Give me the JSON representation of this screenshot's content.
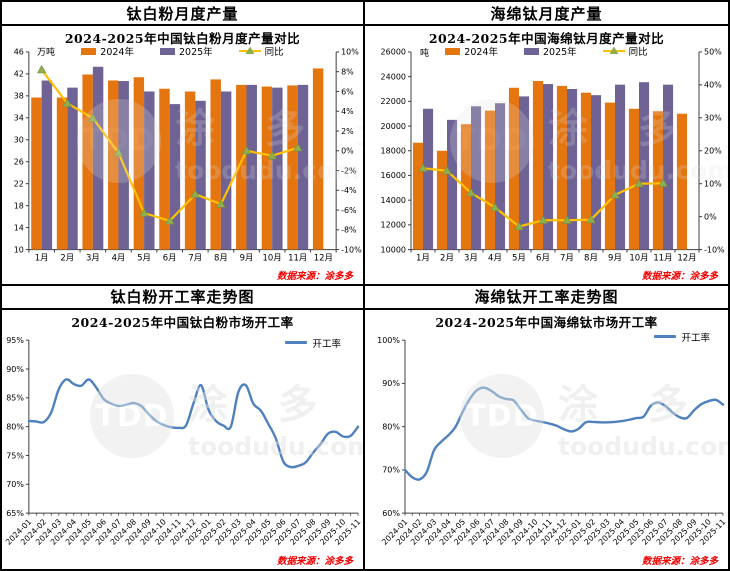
{
  "watermark": {
    "tdd": "TDD",
    "cn": "涂 多 多",
    "url": "toodudu.com"
  },
  "chart_data": [
    {
      "name": "tio2-monthly-output",
      "type": "bar",
      "title": "钛白粉月度产量",
      "subtitle": "2024-2025年中国钛白粉月度产量对比",
      "unit": "万吨",
      "source": "数据来源：涂多多",
      "categories": [
        "1月",
        "2月",
        "3月",
        "4月",
        "5月",
        "6月",
        "7月",
        "8月",
        "9月",
        "10月",
        "11月",
        "12月"
      ],
      "series": [
        {
          "name": "2024年",
          "color": "#e4750f",
          "values": [
            37.7,
            37.7,
            41.9,
            40.8,
            41.4,
            39.3,
            38.8,
            41.0,
            40.0,
            39.7,
            39.9,
            43.0
          ]
        },
        {
          "name": "2025年",
          "color": "#6e6394",
          "values": [
            40.8,
            39.5,
            43.3,
            40.7,
            38.8,
            36.5,
            37.1,
            38.8,
            40.0,
            39.5,
            40.0,
            null
          ]
        }
      ],
      "line_series": {
        "name": "同比",
        "color": "#ffc000",
        "marker_color": "#8fae4d",
        "values": [
          8.2,
          4.8,
          3.3,
          -0.2,
          -6.3,
          -7.1,
          -4.4,
          -5.4,
          0.0,
          -0.5,
          0.3
        ]
      },
      "left_axis": {
        "min": 10,
        "max": 46,
        "step": 4,
        "suffix": ""
      },
      "right_axis": {
        "min": -10,
        "max": 10,
        "step": 2,
        "suffix": "%"
      }
    },
    {
      "name": "sponge-ti-monthly-output",
      "type": "bar",
      "title": "海绵钛月度产量",
      "subtitle": "2024-2025年中国海绵钛月度产量对比",
      "unit": "吨",
      "source": "数据来源：涂多多",
      "categories": [
        "1月",
        "2月",
        "3月",
        "4月",
        "5月",
        "6月",
        "7月",
        "8月",
        "9月",
        "10月",
        "11月",
        "12月"
      ],
      "series": [
        {
          "name": "2024年",
          "color": "#e4750f",
          "values": [
            18650,
            18000,
            20150,
            21250,
            23100,
            23650,
            23250,
            22700,
            21900,
            21400,
            21200,
            21000
          ]
        },
        {
          "name": "2025年",
          "color": "#6e6394",
          "values": [
            21400,
            20500,
            21600,
            21850,
            22400,
            23400,
            23000,
            22500,
            23350,
            23550,
            23350,
            null
          ]
        }
      ],
      "line_series": {
        "name": "同比",
        "color": "#ffc000",
        "marker_color": "#8fae4d",
        "values": [
          14.7,
          13.9,
          7.2,
          2.8,
          -3.0,
          -1.1,
          -1.1,
          -0.9,
          6.6,
          10.0,
          10.1
        ]
      },
      "left_axis": {
        "min": 10000,
        "max": 26000,
        "step": 2000,
        "suffix": ""
      },
      "right_axis": {
        "min": -10,
        "max": 50,
        "step": 10,
        "suffix": "%"
      }
    },
    {
      "name": "tio2-operating-rate",
      "type": "line",
      "title": "钛白粉开工率走势图",
      "subtitle": "2024-2025年中国钛白粉市场开工率",
      "legend": "开工率",
      "line_color": "#4e81bd",
      "source": "数据来源：涂多多",
      "x_labels": [
        "2024-01",
        "2024-02",
        "2024-03",
        "2024-04",
        "2024-05",
        "2024-06",
        "2024-07",
        "2024-08",
        "2024-09",
        "2024-10",
        "2024-11",
        "2024-12",
        "2025-01",
        "2025-02",
        "2025-03",
        "2025-04",
        "2025-05",
        "2025-06",
        "2025-07",
        "2025-08",
        "2025-09",
        "2025-10",
        "2025-11"
      ],
      "values": [
        81.0,
        80.9,
        80.8,
        82.5,
        86.5,
        88.2,
        87.4,
        87.1,
        88.2,
        86.8,
        84.8,
        84.0,
        83.6,
        83.8,
        84.1,
        83.6,
        82.2,
        81.0,
        80.3,
        79.9,
        79.8,
        80.2,
        84.0,
        87.2,
        83.0,
        81.0,
        80.2,
        80.0,
        86.0,
        87.2,
        84.0,
        82.8,
        80.5,
        78.0,
        74.0,
        73.0,
        73.2,
        73.8,
        75.5,
        77.0,
        78.8,
        79.1,
        78.3,
        78.4,
        80.0
      ],
      "y_axis": {
        "min": 65,
        "max": 95,
        "step": 5,
        "suffix": "%"
      }
    },
    {
      "name": "sponge-ti-operating-rate",
      "type": "line",
      "title": "海绵钛开工率走势图",
      "subtitle": "2024-2025年中国海绵钛市场开工率",
      "legend": "开工率",
      "line_color": "#4e81bd",
      "source": "数据来源：涂多多",
      "x_labels": [
        "2024-01",
        "2024-02",
        "2024-03",
        "2024-04",
        "2024-05",
        "2024-06",
        "2024-07",
        "2024-08",
        "2024-09",
        "2024-10",
        "2024-11",
        "2024-12",
        "2025-01",
        "2025-02",
        "2025-03",
        "2025-04",
        "2025-05",
        "2025-06",
        "2025-07",
        "2025-08",
        "2025-09",
        "2025-10",
        "2025-11"
      ],
      "values": [
        70.0,
        68.3,
        67.8,
        69.5,
        74.5,
        76.5,
        78.0,
        80.0,
        83.5,
        86.5,
        88.5,
        89.0,
        88.2,
        87.0,
        86.4,
        86.1,
        84.0,
        82.0,
        81.4,
        81.1,
        80.7,
        80.2,
        79.4,
        78.9,
        79.5,
        81.0,
        81.1,
        81.0,
        81.0,
        81.1,
        81.3,
        81.6,
        82.0,
        82.3,
        84.8,
        85.6,
        84.8,
        83.3,
        82.2,
        82.0,
        83.8,
        85.2,
        85.9,
        86.2,
        85.1
      ],
      "y_axis": {
        "min": 60,
        "max": 100,
        "step": 10,
        "suffix": "%"
      }
    }
  ]
}
